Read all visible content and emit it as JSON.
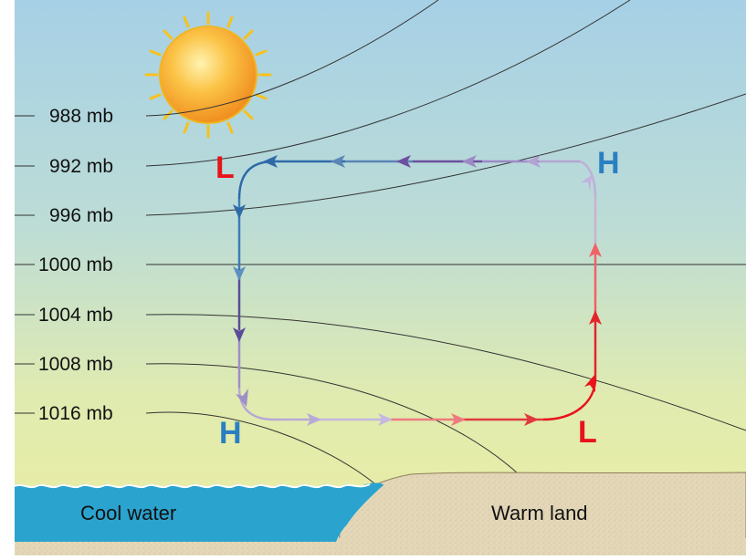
{
  "isobars": [
    {
      "label": "988 mb"
    },
    {
      "label": "992 mb"
    },
    {
      "label": "996 mb"
    },
    {
      "label": "1000 mb"
    },
    {
      "label": "1004 mb"
    },
    {
      "label": "1008 mb"
    },
    {
      "label": "1016 mb"
    }
  ],
  "pressure_markers": {
    "upper_left": {
      "letter": "L",
      "color": "#e8141b"
    },
    "upper_right": {
      "letter": "H",
      "color": "#2a7fc1"
    },
    "lower_left": {
      "letter": "H",
      "color": "#2a7fc1"
    },
    "lower_right": {
      "letter": "L",
      "color": "#e8141b"
    }
  },
  "surface": {
    "water_label": "Cool water",
    "land_label": "Warm land"
  },
  "colors": {
    "sky_top": "#a9d2e4",
    "sky_bottom": "#e4eaaa",
    "water": "#2fa3cc",
    "land": "#e2d6b6",
    "sun": "#f5a623",
    "arrow_cool": "#2f6fb0",
    "arrow_mid": "#7a5aa8",
    "arrow_warm": "#e8141b"
  },
  "icons": {
    "sun": "sun-icon",
    "arrows": "arrow-icon"
  }
}
